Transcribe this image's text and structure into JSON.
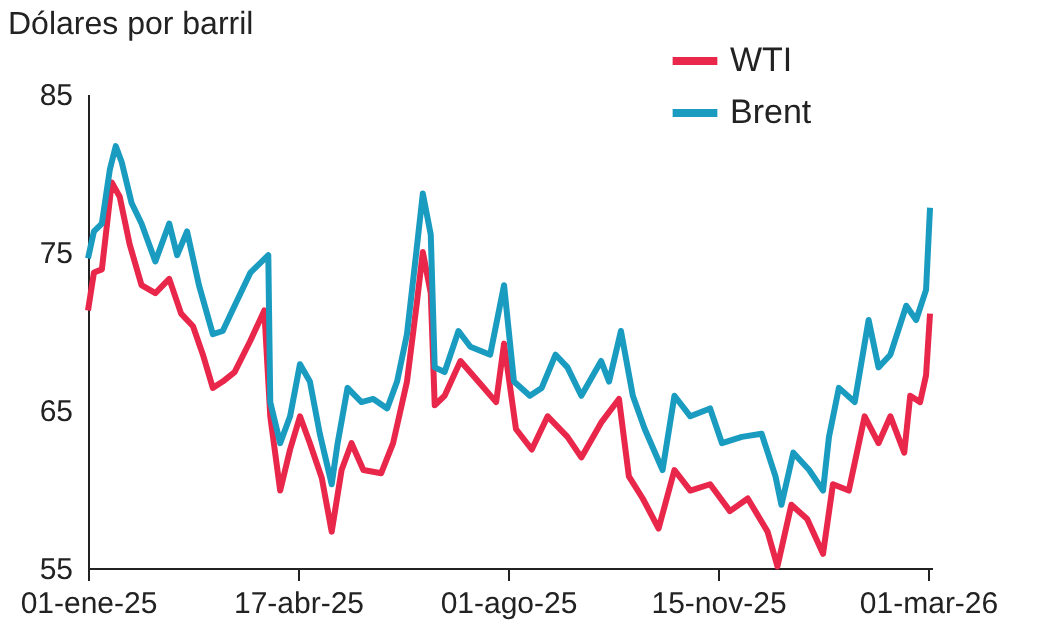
{
  "chart_data": {
    "type": "line",
    "title": "Dólares por barril",
    "series": [
      {
        "name": "WTI",
        "color": "#e8274b",
        "x": [
          "2025-01-01",
          "2025-01-04",
          "2025-01-08",
          "2025-01-13",
          "2025-01-17",
          "2025-01-22",
          "2025-01-28",
          "2025-02-04",
          "2025-02-11",
          "2025-02-17",
          "2025-02-23",
          "2025-02-28",
          "2025-03-05",
          "2025-03-10",
          "2025-03-16",
          "2025-03-24",
          "2025-03-31",
          "2025-04-03",
          "2025-04-08",
          "2025-04-13",
          "2025-04-18",
          "2025-04-23",
          "2025-04-29",
          "2025-05-04",
          "2025-05-09",
          "2025-05-14",
          "2025-05-20",
          "2025-05-29",
          "2025-06-04",
          "2025-06-11",
          "2025-06-16",
          "2025-06-19",
          "2025-06-23",
          "2025-06-25",
          "2025-06-30",
          "2025-07-08",
          "2025-07-17",
          "2025-07-26",
          "2025-07-30",
          "2025-08-05",
          "2025-08-13",
          "2025-08-21",
          "2025-08-31",
          "2025-09-07",
          "2025-09-17",
          "2025-09-26",
          "2025-10-01",
          "2025-10-08",
          "2025-10-16",
          "2025-10-24",
          "2025-11-01",
          "2025-11-11",
          "2025-11-21",
          "2025-11-30",
          "2025-12-10",
          "2025-12-15",
          "2025-12-22",
          "2025-12-30",
          "2026-01-07",
          "2026-01-12",
          "2026-01-20",
          "2026-01-28",
          "2026-02-04",
          "2026-02-10",
          "2026-02-17",
          "2026-02-20",
          "2026-02-25",
          "2026-02-28",
          "2026-03-02"
        ],
        "values": [
          71.3,
          73.7,
          73.9,
          79.4,
          78.5,
          75.5,
          72.9,
          72.4,
          73.3,
          71.1,
          70.3,
          68.5,
          66.4,
          66.8,
          67.4,
          69.4,
          71.3,
          64.6,
          59.9,
          62.5,
          64.6,
          62.9,
          60.7,
          57.3,
          61.2,
          62.9,
          61.2,
          61.0,
          62.9,
          66.8,
          71.8,
          75.0,
          72.4,
          65.3,
          65.9,
          68.1,
          66.8,
          65.5,
          69.2,
          63.8,
          62.5,
          64.6,
          63.3,
          62.0,
          64.2,
          65.7,
          60.8,
          59.4,
          57.5,
          61.2,
          59.9,
          60.3,
          58.6,
          59.4,
          57.3,
          55.1,
          59.0,
          58.1,
          55.9,
          60.3,
          59.9,
          64.6,
          62.9,
          64.6,
          62.3,
          65.9,
          65.5,
          67.2,
          71.1
        ]
      },
      {
        "name": "Brent",
        "color": "#1a9bc0",
        "x": [
          "2025-01-01",
          "2025-01-04",
          "2025-01-08",
          "2025-01-12",
          "2025-01-15",
          "2025-01-18",
          "2025-01-23",
          "2025-01-28",
          "2025-02-04",
          "2025-02-11",
          "2025-02-15",
          "2025-02-20",
          "2025-02-26",
          "2025-03-05",
          "2025-03-10",
          "2025-03-16",
          "2025-03-24",
          "2025-04-02",
          "2025-04-03",
          "2025-04-08",
          "2025-04-13",
          "2025-04-18",
          "2025-04-23",
          "2025-04-28",
          "2025-05-04",
          "2025-05-07",
          "2025-05-12",
          "2025-05-19",
          "2025-05-25",
          "2025-06-01",
          "2025-06-06",
          "2025-06-11",
          "2025-06-15",
          "2025-06-19",
          "2025-06-23",
          "2025-06-25",
          "2025-06-30",
          "2025-07-07",
          "2025-07-13",
          "2025-07-23",
          "2025-07-30",
          "2025-08-04",
          "2025-08-12",
          "2025-08-18",
          "2025-08-25",
          "2025-08-31",
          "2025-09-07",
          "2025-09-17",
          "2025-09-21",
          "2025-09-27",
          "2025-10-03",
          "2025-10-09",
          "2025-10-18",
          "2025-10-24",
          "2025-11-01",
          "2025-11-11",
          "2025-11-17",
          "2025-11-27",
          "2025-12-07",
          "2025-12-14",
          "2025-12-17",
          "2025-12-23",
          "2025-12-31",
          "2026-01-07",
          "2026-01-10",
          "2026-01-15",
          "2026-01-23",
          "2026-01-30",
          "2026-02-04",
          "2026-02-10",
          "2026-02-18",
          "2026-02-23",
          "2026-02-28",
          "2026-03-02"
        ],
        "values": [
          74.6,
          76.3,
          76.8,
          80.2,
          81.7,
          80.7,
          78.1,
          76.8,
          74.4,
          76.8,
          74.8,
          76.3,
          72.9,
          69.8,
          70.0,
          71.6,
          73.7,
          74.8,
          65.5,
          62.9,
          64.6,
          67.9,
          66.8,
          63.5,
          60.3,
          62.9,
          66.4,
          65.5,
          65.7,
          65.1,
          66.8,
          69.8,
          74.2,
          78.7,
          76.1,
          67.7,
          67.4,
          70.0,
          69.0,
          68.5,
          72.9,
          66.8,
          65.9,
          66.4,
          68.5,
          67.7,
          65.9,
          68.1,
          66.8,
          70.0,
          65.9,
          63.8,
          61.2,
          65.9,
          64.6,
          65.1,
          62.9,
          63.3,
          63.5,
          60.8,
          59.0,
          62.3,
          61.2,
          59.9,
          63.3,
          66.4,
          65.5,
          70.7,
          67.7,
          68.5,
          71.6,
          70.7,
          72.6,
          77.8
        ]
      }
    ],
    "xlim": [
      "2025-01-01",
      "2026-03-03"
    ],
    "xticks": [
      {
        "value": "2025-01-01",
        "label": "01-ene-25"
      },
      {
        "value": "2025-04-17",
        "label": "17-abr-25"
      },
      {
        "value": "2025-08-01",
        "label": "01-ago-25"
      },
      {
        "value": "2025-11-15",
        "label": "15-nov-25"
      },
      {
        "value": "2026-03-01",
        "label": "01-mar-26"
      }
    ],
    "ylim": [
      55,
      85
    ],
    "yticks": [
      55,
      65,
      75,
      85
    ],
    "grid": false,
    "legend": "top right",
    "line_style": "solid",
    "marker": "none"
  }
}
